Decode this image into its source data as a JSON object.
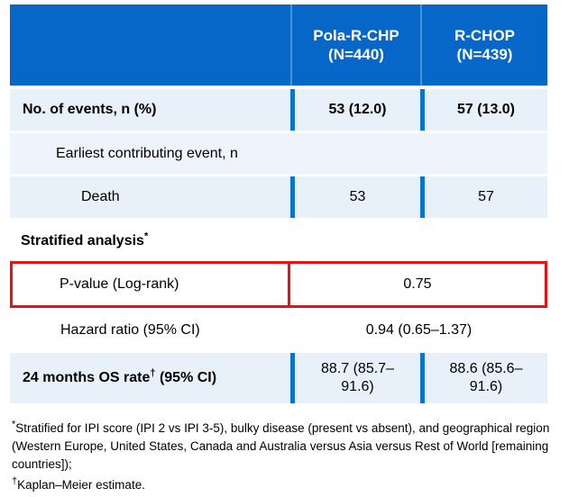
{
  "table": {
    "header": {
      "arm1": {
        "name": "Pola-R-CHP",
        "n": "(N=440)"
      },
      "arm2": {
        "name": "R-CHOP",
        "n": "(N=439)"
      }
    },
    "rows": {
      "events": {
        "label": "No. of events, n (%)",
        "arm1": "53 (12.0)",
        "arm2": "57 (13.0)"
      },
      "earliest": {
        "label": "Earliest contributing event, n"
      },
      "death": {
        "label": "Death",
        "arm1": "53",
        "arm2": "57"
      },
      "stratified": {
        "label": "Stratified analysis",
        "sup": "*"
      },
      "pvalue": {
        "label": "P-value (Log-rank)",
        "value": "0.75"
      },
      "hazard": {
        "label": "Hazard ratio (95% CI)",
        "value": "0.94 (0.65–1.37)"
      },
      "os_rate": {
        "label_prefix": "24 months OS rate",
        "sup": "†",
        "label_suffix": " (95% CI)",
        "arm1": "88.7 (85.7–91.6)",
        "arm2": "88.6 (85.6–91.6)"
      }
    }
  },
  "footnotes": {
    "stratified": {
      "sup": "*",
      "text": "Stratified for IPI score (IPI 2 vs IPI 3-5), bulky disease (present vs absent), and geographical region (Western Europe, United States, Canada and Australia versus Asia versus Rest of World [remaining countries]);"
    },
    "km": {
      "sup": "†",
      "text": "Kaplan–Meier estimate."
    }
  },
  "colors": {
    "header_blue": "#0667C8",
    "divider_blue": "#0D72D6",
    "row_light_blue": "#E8F0FA",
    "row_lighter_blue": "#EFF4FC",
    "highlight_red": "#F40D0D",
    "header_text": "#FFFFFF",
    "body_text": "#000000"
  },
  "chart_data": {
    "type": "table",
    "title": "",
    "columns": [
      "",
      "Pola-R-CHP (N=440)",
      "R-CHOP (N=439)"
    ],
    "rows": [
      [
        "No. of events, n (%)",
        "53 (12.0)",
        "57 (13.0)"
      ],
      [
        "Earliest contributing event, n",
        "",
        ""
      ],
      [
        "Death",
        "53",
        "57"
      ],
      [
        "Stratified analysis*",
        "",
        ""
      ],
      [
        "P-value (Log-rank)",
        "0.75",
        "0.75"
      ],
      [
        "Hazard ratio (95% CI)",
        "0.94 (0.65–1.37)",
        "0.94 (0.65–1.37)"
      ],
      [
        "24 months OS rate† (95% CI)",
        "88.7 (85.7–91.6)",
        "88.6 (85.6–91.6)"
      ]
    ]
  }
}
